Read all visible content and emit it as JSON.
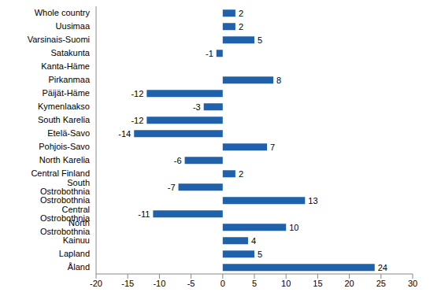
{
  "chart_data": {
    "type": "bar",
    "orientation": "horizontal",
    "categories": [
      "Whole country",
      "Uusimaa",
      "Varsinais-Suomi",
      "Satakunta",
      "Kanta-Häme",
      "Pirkanmaa",
      "Päijät-Häme",
      "Kymenlaakso",
      "South Karelia",
      "Etelä-Savo",
      "Pohjois-Savo",
      "North Karelia",
      "Central Finland",
      "South Ostrobothnia",
      "Ostrobothnia",
      "Central Ostrobothnia",
      "North Ostrobothnia",
      "Kainuu",
      "Lapland",
      "Åland"
    ],
    "values": [
      2,
      2,
      5,
      -1,
      0,
      8,
      -12,
      -3,
      -12,
      -14,
      7,
      -6,
      2,
      -7,
      13,
      -11,
      10,
      4,
      5,
      24
    ],
    "color": "#1f62ab",
    "xlim": [
      -20,
      30
    ],
    "xticks": [
      -20,
      -15,
      -10,
      -5,
      0,
      5,
      10,
      15,
      20,
      25,
      30
    ],
    "grid": false,
    "data_labels": true
  }
}
